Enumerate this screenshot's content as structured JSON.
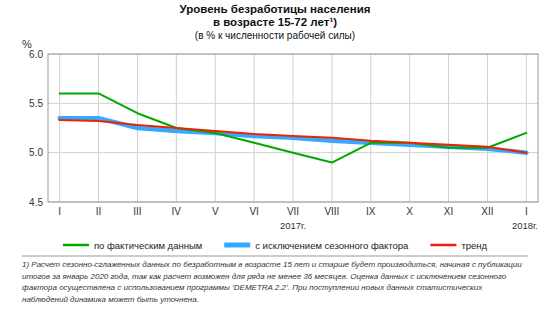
{
  "chart_data": {
    "type": "line",
    "title": [
      "Уровень безработицы населения",
      "в возрасте 15-72 лет¹)"
    ],
    "subtitle": "(в % к численности рабочей силы)",
    "y_label": "%",
    "categories": [
      "I",
      "II",
      "III",
      "IV",
      "V",
      "VI",
      "VII",
      "VIII",
      "IX",
      "X",
      "XI",
      "XII",
      "I"
    ],
    "annotations": [
      "2017г.",
      "2018г."
    ],
    "series": [
      {
        "name": "по фактическим данным",
        "color": "#00aa00",
        "line_style": "solid",
        "values": [
          5.6,
          5.6,
          5.4,
          5.25,
          5.2,
          5.1,
          5.0,
          4.9,
          5.1,
          5.1,
          5.05,
          5.05,
          5.2
        ]
      },
      {
        "name": "с исключением сезонного фактора",
        "color": "#33aaff",
        "line_style": "thick",
        "values": [
          5.35,
          5.35,
          5.25,
          5.22,
          5.2,
          5.17,
          5.15,
          5.12,
          5.1,
          5.08,
          5.06,
          5.04,
          5.0
        ]
      },
      {
        "name": "тренд",
        "color": "#ee2200",
        "line_style": "solid",
        "values": [
          5.33,
          5.32,
          5.28,
          5.25,
          5.22,
          5.19,
          5.17,
          5.15,
          5.12,
          5.1,
          5.08,
          5.06,
          5.0
        ]
      }
    ],
    "ylim": [
      4.5,
      6.0
    ],
    "yticks": [
      4.5,
      {
        "value": 5.0,
        "label": "5.0"
      },
      5.5,
      {
        "value": 6.0,
        "label": "6.0"
      }
    ],
    "grid": true,
    "legend": "bottom",
    "footnote": [
      "1) Расчет сезонно-сглаженных данных по безработным в возрасте 15 лет и старше будет производиться, начиная с публикации",
      "итогов за январь 2020 года, так как расчет возможен для ряда не менее 36 месяцев. Оценка данных с исключением сезонного",
      "фактора осуществлена с использованием программы ‘DEMETRA 2.2’. При поступлении новых данных статистических",
      "наблюдений динамика может быть уточнена."
    ]
  }
}
